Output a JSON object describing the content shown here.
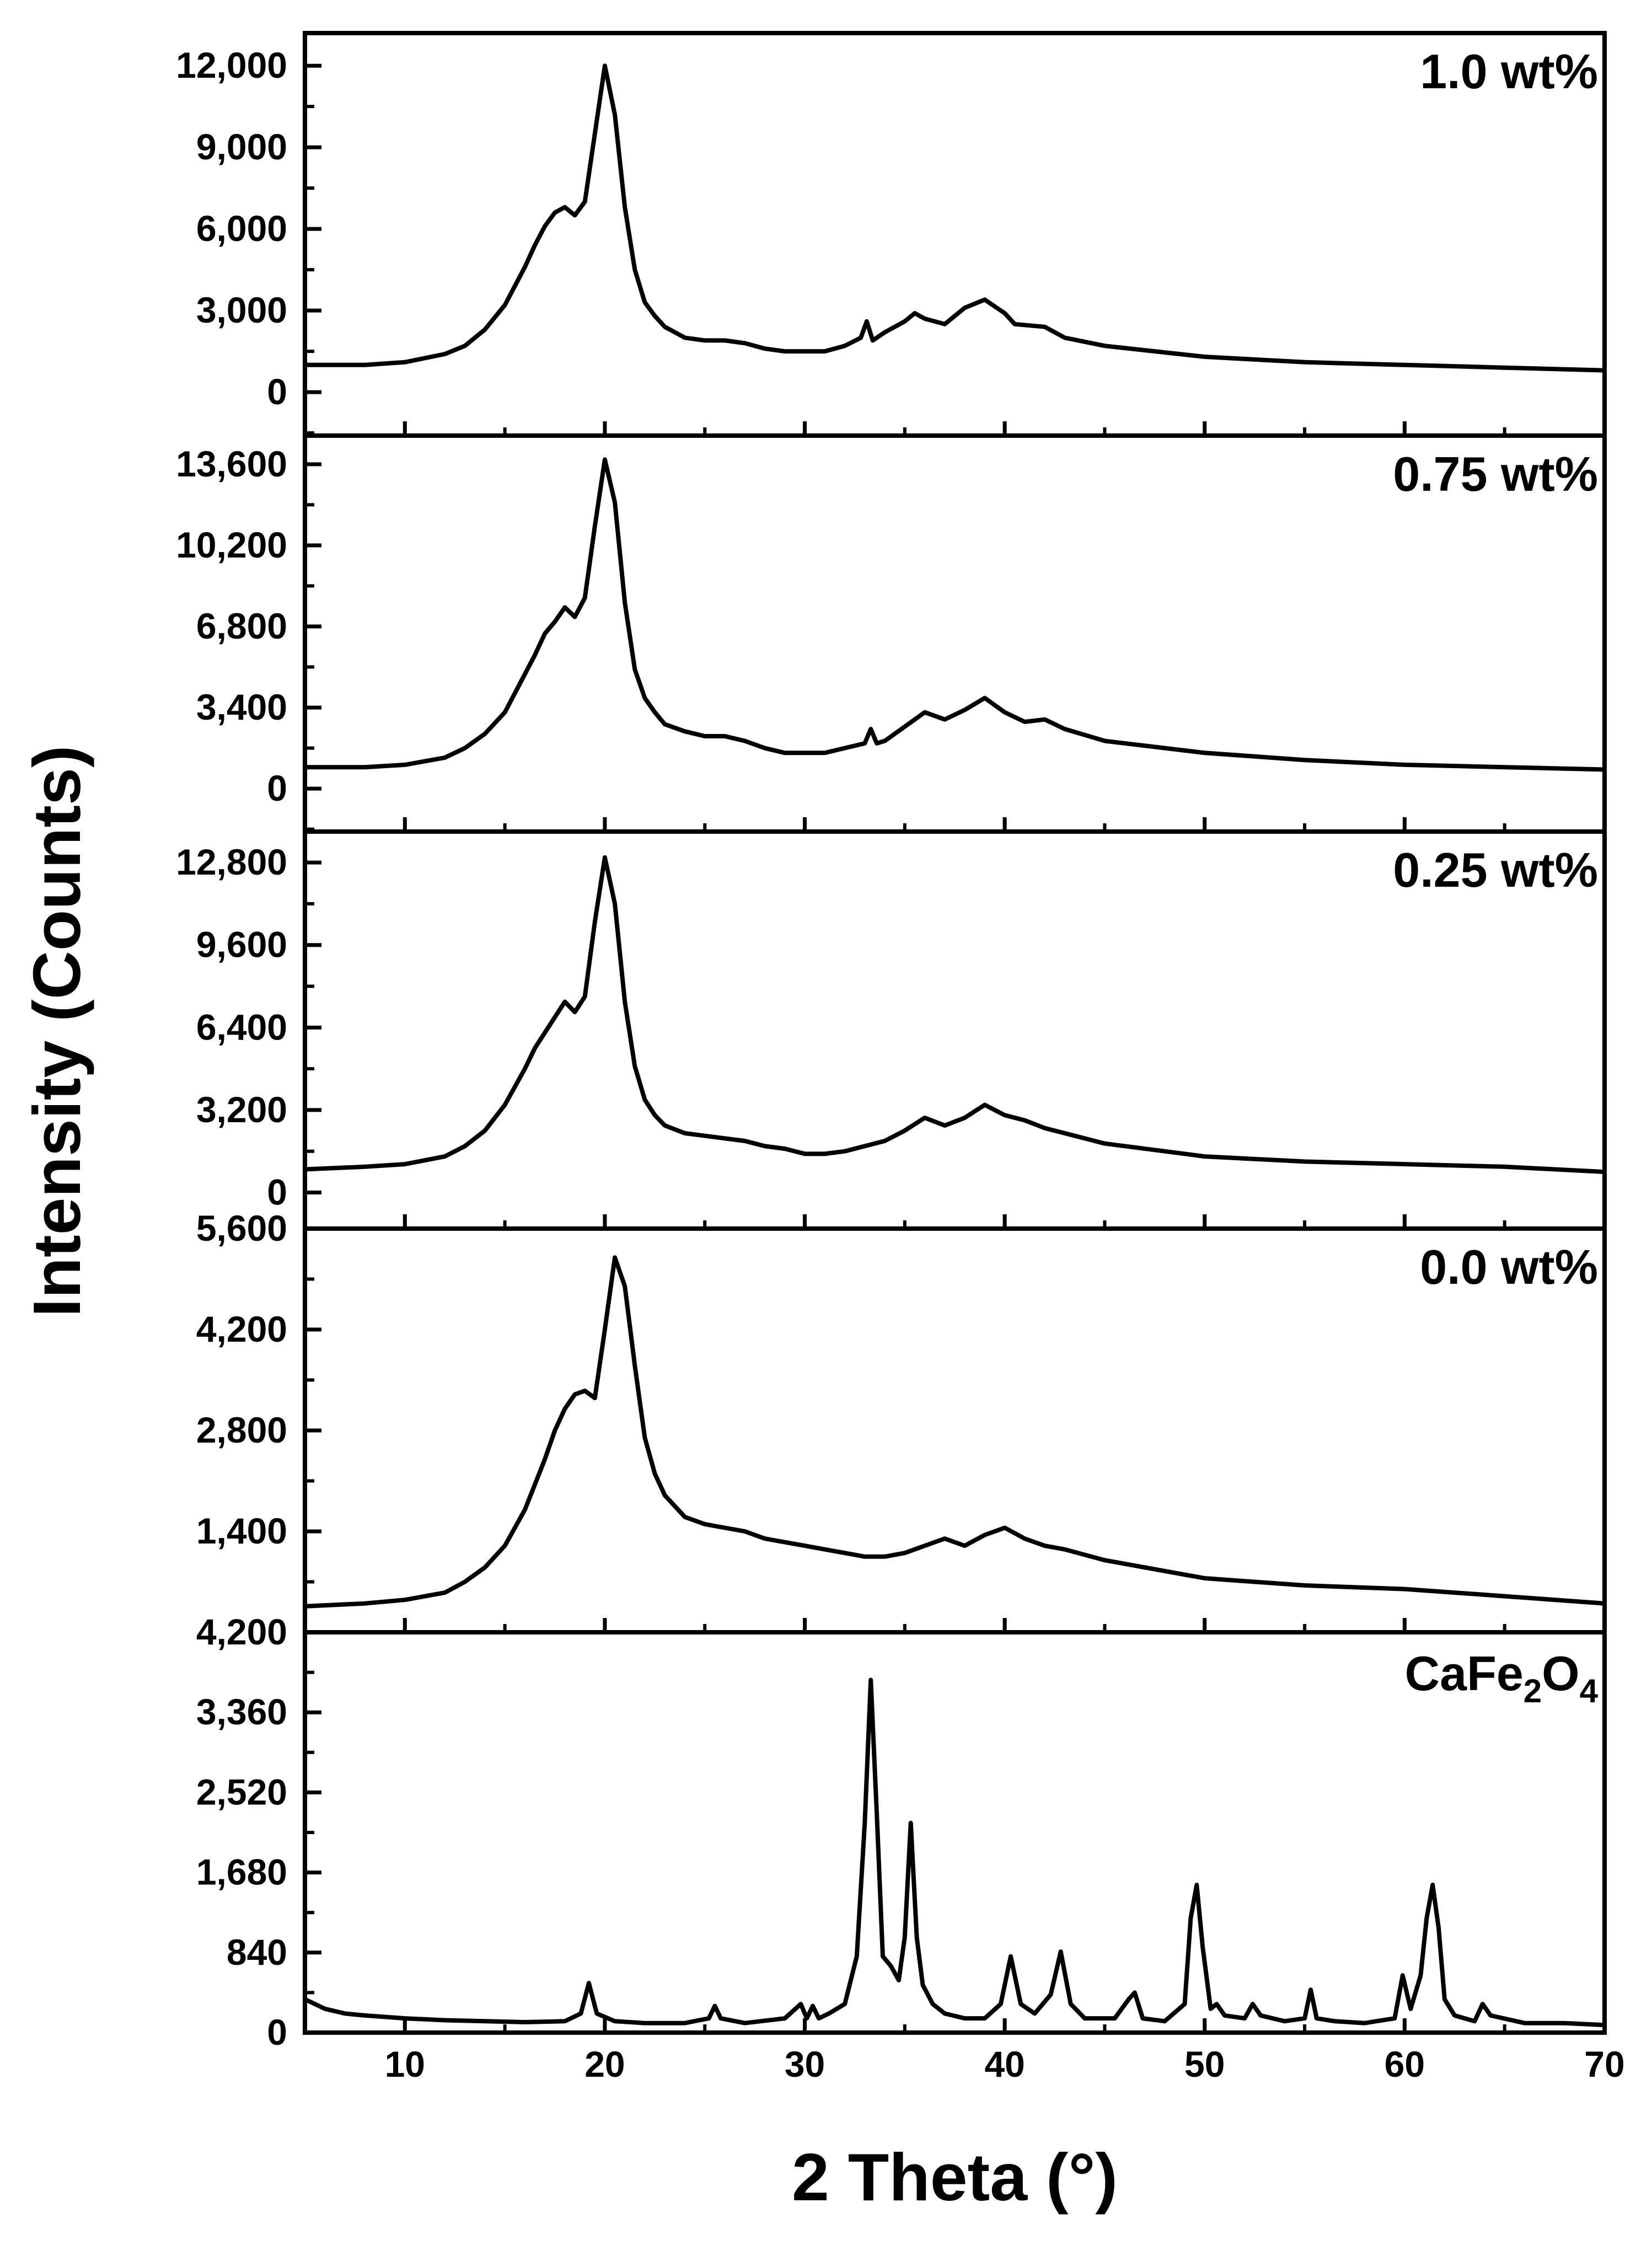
{
  "chart_data": {
    "type": "line",
    "xlabel": "2 Theta (°)",
    "ylabel": "Intensity (Counts)",
    "xlim": [
      5,
      70
    ],
    "xticks": [
      10,
      20,
      30,
      40,
      50,
      60,
      70
    ],
    "xtick_labels": [
      "10",
      "20",
      "30",
      "40",
      "50",
      "60",
      "70"
    ],
    "colors": {
      "line": "#000000",
      "background": "#ffffff"
    },
    "panels": [
      {
        "label": "1.0 wt%",
        "ylim": [
          -1600,
          13200
        ],
        "yticks": [
          0,
          3000,
          6000,
          9000,
          12000
        ],
        "ytick_labels": [
          "0",
          "3,000",
          "6,000",
          "9,000",
          "12,000"
        ],
        "series": {
          "name": "1.0 wt%",
          "x": [
            5,
            8,
            10,
            12,
            13,
            14,
            15,
            16,
            16.5,
            17,
            17.5,
            18,
            18.5,
            19,
            19.5,
            20,
            20.5,
            21,
            21.5,
            22,
            22.5,
            23,
            24,
            25,
            26,
            27,
            28,
            29,
            30,
            31,
            32,
            32.8,
            33.1,
            33.4,
            34,
            35,
            35.5,
            36,
            37,
            38,
            39,
            40,
            40.5,
            42,
            43,
            45,
            50,
            55,
            60,
            65,
            70
          ],
          "y": [
            1000,
            1000,
            1100,
            1400,
            1700,
            2300,
            3200,
            4600,
            5400,
            6100,
            6600,
            6800,
            6500,
            7000,
            9500,
            12000,
            10200,
            6800,
            4500,
            3300,
            2800,
            2400,
            2000,
            1900,
            1900,
            1800,
            1600,
            1500,
            1500,
            1500,
            1700,
            2000,
            2600,
            1900,
            2200,
            2600,
            2900,
            2700,
            2500,
            3100,
            3400,
            2900,
            2500,
            2400,
            2000,
            1700,
            1300,
            1100,
            1000,
            900,
            800
          ]
        }
      },
      {
        "label": "0.75 wt%",
        "ylim": [
          -1800,
          14800
        ],
        "yticks": [
          0,
          3400,
          6800,
          10200,
          13600
        ],
        "ytick_labels": [
          "0",
          "3,400",
          "6,800",
          "10,200",
          "13,600"
        ],
        "series": {
          "name": "0.75 wt%",
          "x": [
            5,
            8,
            10,
            12,
            13,
            14,
            15,
            16,
            16.5,
            17,
            17.5,
            18,
            18.5,
            19,
            19.5,
            20,
            20.5,
            21,
            21.5,
            22,
            22.5,
            23,
            24,
            25,
            26,
            27,
            28,
            29,
            30,
            31,
            32,
            33,
            33.3,
            33.6,
            34,
            35,
            36,
            37,
            38,
            39,
            40,
            41,
            42,
            43,
            45,
            50,
            55,
            60,
            65,
            70
          ],
          "y": [
            900,
            900,
            1000,
            1300,
            1700,
            2300,
            3200,
            4800,
            5600,
            6500,
            7000,
            7600,
            7200,
            8000,
            11000,
            13800,
            12000,
            7800,
            5000,
            3800,
            3200,
            2700,
            2400,
            2200,
            2200,
            2000,
            1700,
            1500,
            1500,
            1500,
            1700,
            1900,
            2500,
            1900,
            2000,
            2600,
            3200,
            2900,
            3300,
            3800,
            3200,
            2800,
            2900,
            2500,
            2000,
            1500,
            1200,
            1000,
            900,
            800
          ]
        }
      },
      {
        "label": "0.25 wt%",
        "ylim": [
          -1400,
          14000
        ],
        "yticks": [
          0,
          3200,
          6400,
          9600,
          12800
        ],
        "ytick_labels": [
          "0",
          "3,200",
          "6,400",
          "9,600",
          "12,800"
        ],
        "series": {
          "name": "0.25 wt%",
          "x": [
            5,
            8,
            10,
            12,
            13,
            14,
            15,
            16,
            16.5,
            17,
            17.5,
            18,
            18.5,
            19,
            19.5,
            20,
            20.5,
            21,
            21.5,
            22,
            22.5,
            23,
            24,
            25,
            26,
            27,
            28,
            29,
            30,
            31,
            32,
            33,
            34,
            35,
            36,
            37,
            38,
            39,
            40,
            41,
            42,
            43,
            45,
            50,
            55,
            60,
            65,
            70
          ],
          "y": [
            900,
            1000,
            1100,
            1400,
            1800,
            2400,
            3400,
            4800,
            5600,
            6200,
            6800,
            7400,
            7000,
            7600,
            10500,
            13000,
            11200,
            7400,
            4900,
            3600,
            3000,
            2600,
            2300,
            2200,
            2100,
            2000,
            1800,
            1700,
            1500,
            1500,
            1600,
            1800,
            2000,
            2400,
            2900,
            2600,
            2900,
            3400,
            3000,
            2800,
            2500,
            2300,
            1900,
            1400,
            1200,
            1100,
            1000,
            800
          ]
        }
      },
      {
        "label": "0.0 wt%",
        "ylim": [
          0,
          5600
        ],
        "yticks": [
          1400,
          2800,
          4200,
          5600
        ],
        "ytick_labels": [
          "1,400",
          "2,800",
          "4,200",
          "5,600"
        ],
        "series": {
          "name": "0.0 wt%",
          "x": [
            5,
            8,
            10,
            12,
            13,
            14,
            15,
            16,
            17,
            17.5,
            18,
            18.5,
            19,
            19.5,
            20,
            20.5,
            21,
            21.5,
            22,
            22.5,
            23,
            24,
            25,
            26,
            27,
            28,
            29,
            30,
            31,
            32,
            33,
            34,
            35,
            36,
            37,
            38,
            39,
            40,
            41,
            42,
            43,
            45,
            50,
            55,
            60,
            65,
            70
          ],
          "y": [
            360,
            400,
            450,
            550,
            700,
            900,
            1200,
            1700,
            2400,
            2800,
            3100,
            3300,
            3350,
            3250,
            4200,
            5200,
            4800,
            3700,
            2700,
            2200,
            1900,
            1600,
            1500,
            1450,
            1400,
            1300,
            1250,
            1200,
            1150,
            1100,
            1050,
            1050,
            1100,
            1200,
            1300,
            1200,
            1350,
            1450,
            1300,
            1200,
            1150,
            1000,
            750,
            650,
            600,
            500,
            400
          ]
        }
      },
      {
        "label": "CaFe",
        "label_sub1": "2",
        "label_mid": "O",
        "label_sub2": "4",
        "ylim": [
          0,
          4200
        ],
        "yticks": [
          0,
          840,
          1680,
          2520,
          3360,
          4200
        ],
        "ytick_labels": [
          "0",
          "840",
          "1,680",
          "2,520",
          "3,360",
          "4,200"
        ],
        "series": {
          "name": "CaFe2O4",
          "x": [
            5,
            6,
            7,
            8,
            10,
            12,
            14,
            16,
            18,
            18.8,
            19.2,
            19.6,
            20.5,
            22,
            24,
            25.2,
            25.5,
            25.8,
            27,
            29,
            29.8,
            30.1,
            30.4,
            30.7,
            31.2,
            32,
            32.6,
            33,
            33.3,
            33.6,
            33.9,
            34.3,
            34.7,
            35,
            35.3,
            35.6,
            35.9,
            36.4,
            37,
            38,
            39,
            39.8,
            40.3,
            40.8,
            41.5,
            42.3,
            42.8,
            43.3,
            44,
            45.5,
            46.2,
            46.5,
            46.9,
            48,
            49,
            49.3,
            49.6,
            49.9,
            50.3,
            50.6,
            51,
            52,
            52.4,
            52.8,
            54,
            55,
            55.3,
            55.6,
            56.5,
            58,
            59.5,
            59.9,
            60.3,
            60.8,
            61.1,
            61.4,
            61.7,
            62,
            62.5,
            63.5,
            63.9,
            64.3,
            66,
            68,
            70
          ],
          "y": [
            350,
            250,
            200,
            180,
            150,
            130,
            120,
            110,
            120,
            200,
            520,
            200,
            120,
            100,
            100,
            150,
            280,
            150,
            100,
            150,
            300,
            150,
            280,
            150,
            200,
            300,
            800,
            2200,
            3700,
            2300,
            800,
            700,
            550,
            1000,
            2200,
            1000,
            500,
            300,
            200,
            150,
            150,
            300,
            800,
            300,
            200,
            400,
            850,
            300,
            150,
            150,
            350,
            420,
            150,
            120,
            300,
            1200,
            1550,
            900,
            250,
            300,
            180,
            150,
            300,
            180,
            120,
            150,
            450,
            150,
            120,
            100,
            150,
            600,
            250,
            600,
            1200,
            1550,
            1100,
            350,
            180,
            120,
            300,
            180,
            100,
            100,
            80
          ]
        }
      }
    ]
  }
}
